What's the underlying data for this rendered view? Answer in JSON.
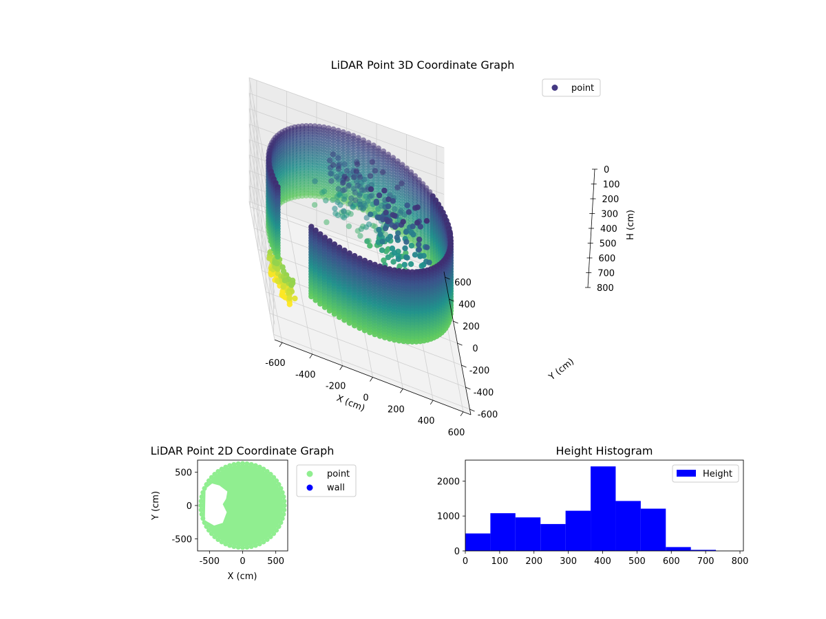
{
  "chart_data": [
    {
      "type": "scatter3d",
      "title": "LiDAR Point 3D Coordinate Graph",
      "xlabel": "X (cm)",
      "ylabel": "Y (cm)",
      "zlabel": "H (cm)",
      "xlim": [
        -650,
        650
      ],
      "ylim": [
        -650,
        650
      ],
      "zlim": [
        0,
        800
      ],
      "z_inverted": true,
      "xticks": [
        -600,
        -400,
        -200,
        0,
        200,
        400,
        600
      ],
      "yticks": [
        -600,
        -400,
        -200,
        0,
        200,
        400,
        600
      ],
      "zticks": [
        0,
        100,
        200,
        300,
        400,
        500,
        600,
        700,
        800
      ],
      "legend": [
        "point"
      ],
      "legend_location": "top-right",
      "colormap": "viridis",
      "colormap_stops": [
        "#440154",
        "#3b528b",
        "#21918c",
        "#5ec962",
        "#fde725"
      ],
      "wall_radius_cm": 600,
      "wall_height_range_cm": [
        100,
        550
      ],
      "wall_gap_angle_range_deg": [
        200,
        228
      ],
      "interior_cluster_height_range_cm": [
        100,
        500
      ],
      "low_cluster_height_range_cm": [
        600,
        750
      ]
    },
    {
      "type": "scatter",
      "title": "LiDAR Point 2D Coordinate Graph",
      "xlabel": "X (cm)",
      "ylabel": "Y (cm)",
      "xlim": [
        -680,
        680
      ],
      "ylim": [
        -680,
        680
      ],
      "xticks": [
        -500,
        0,
        500
      ],
      "yticks": [
        -500,
        0,
        500
      ],
      "legend": [
        "point",
        "wall"
      ],
      "legend_location": "outside-right",
      "series_colors": {
        "point": "#90ee90",
        "wall": "#0000ff"
      },
      "footprint_radius_cm": 610,
      "hole_boundary_cm": [
        [
          -560,
          250
        ],
        [
          -460,
          330
        ],
        [
          -350,
          300
        ],
        [
          -230,
          210
        ],
        [
          -250,
          100
        ],
        [
          -300,
          20
        ],
        [
          -240,
          -100
        ],
        [
          -300,
          -260
        ],
        [
          -430,
          -300
        ],
        [
          -570,
          -220
        ]
      ]
    },
    {
      "type": "histogram",
      "title": "Height Histogram",
      "xlabel": "",
      "ylabel": "",
      "xlim": [
        0,
        810
      ],
      "ylim": [
        0,
        2600
      ],
      "xticks": [
        0,
        100,
        200,
        300,
        400,
        500,
        600,
        700,
        800
      ],
      "yticks": [
        0,
        1000,
        2000
      ],
      "legend": [
        "Height"
      ],
      "legend_location": "top-right",
      "bar_color": "#0000ff",
      "bin_edges": [
        0,
        73,
        146,
        219,
        292,
        365,
        438,
        511,
        584,
        657,
        730
      ],
      "counts": [
        500,
        1080,
        960,
        770,
        1150,
        2420,
        1430,
        1210,
        110,
        30
      ]
    }
  ]
}
